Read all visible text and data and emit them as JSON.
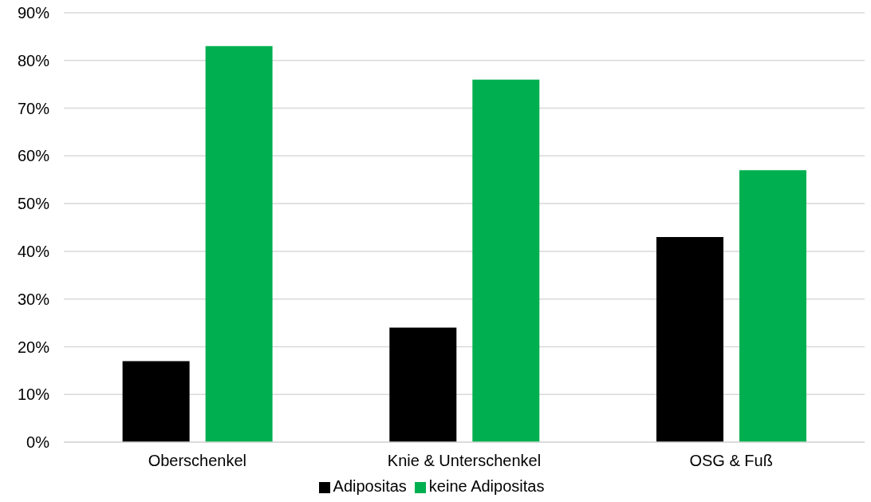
{
  "chart_data": {
    "type": "bar",
    "categories": [
      "Oberschenkel",
      "Knie & Unterschenkel",
      "OSG & Fuß"
    ],
    "series": [
      {
        "name": "Adipositas",
        "color": "#000000",
        "values": [
          17,
          24,
          43
        ]
      },
      {
        "name": "keine Adipositas",
        "color": "#00b050",
        "values": [
          83,
          76,
          57
        ]
      }
    ],
    "ylim": [
      0,
      90
    ],
    "yticks": [
      {
        "value": 0,
        "label": "0%"
      },
      {
        "value": 10,
        "label": "10%"
      },
      {
        "value": 20,
        "label": "20%"
      },
      {
        "value": 30,
        "label": "30%"
      },
      {
        "value": 40,
        "label": "40%"
      },
      {
        "value": 50,
        "label": "50%"
      },
      {
        "value": 60,
        "label": "60%"
      },
      {
        "value": 70,
        "label": "70%"
      },
      {
        "value": 80,
        "label": "80%"
      },
      {
        "value": 90,
        "label": "90%"
      }
    ],
    "grid": "y",
    "legend": "bottom"
  }
}
